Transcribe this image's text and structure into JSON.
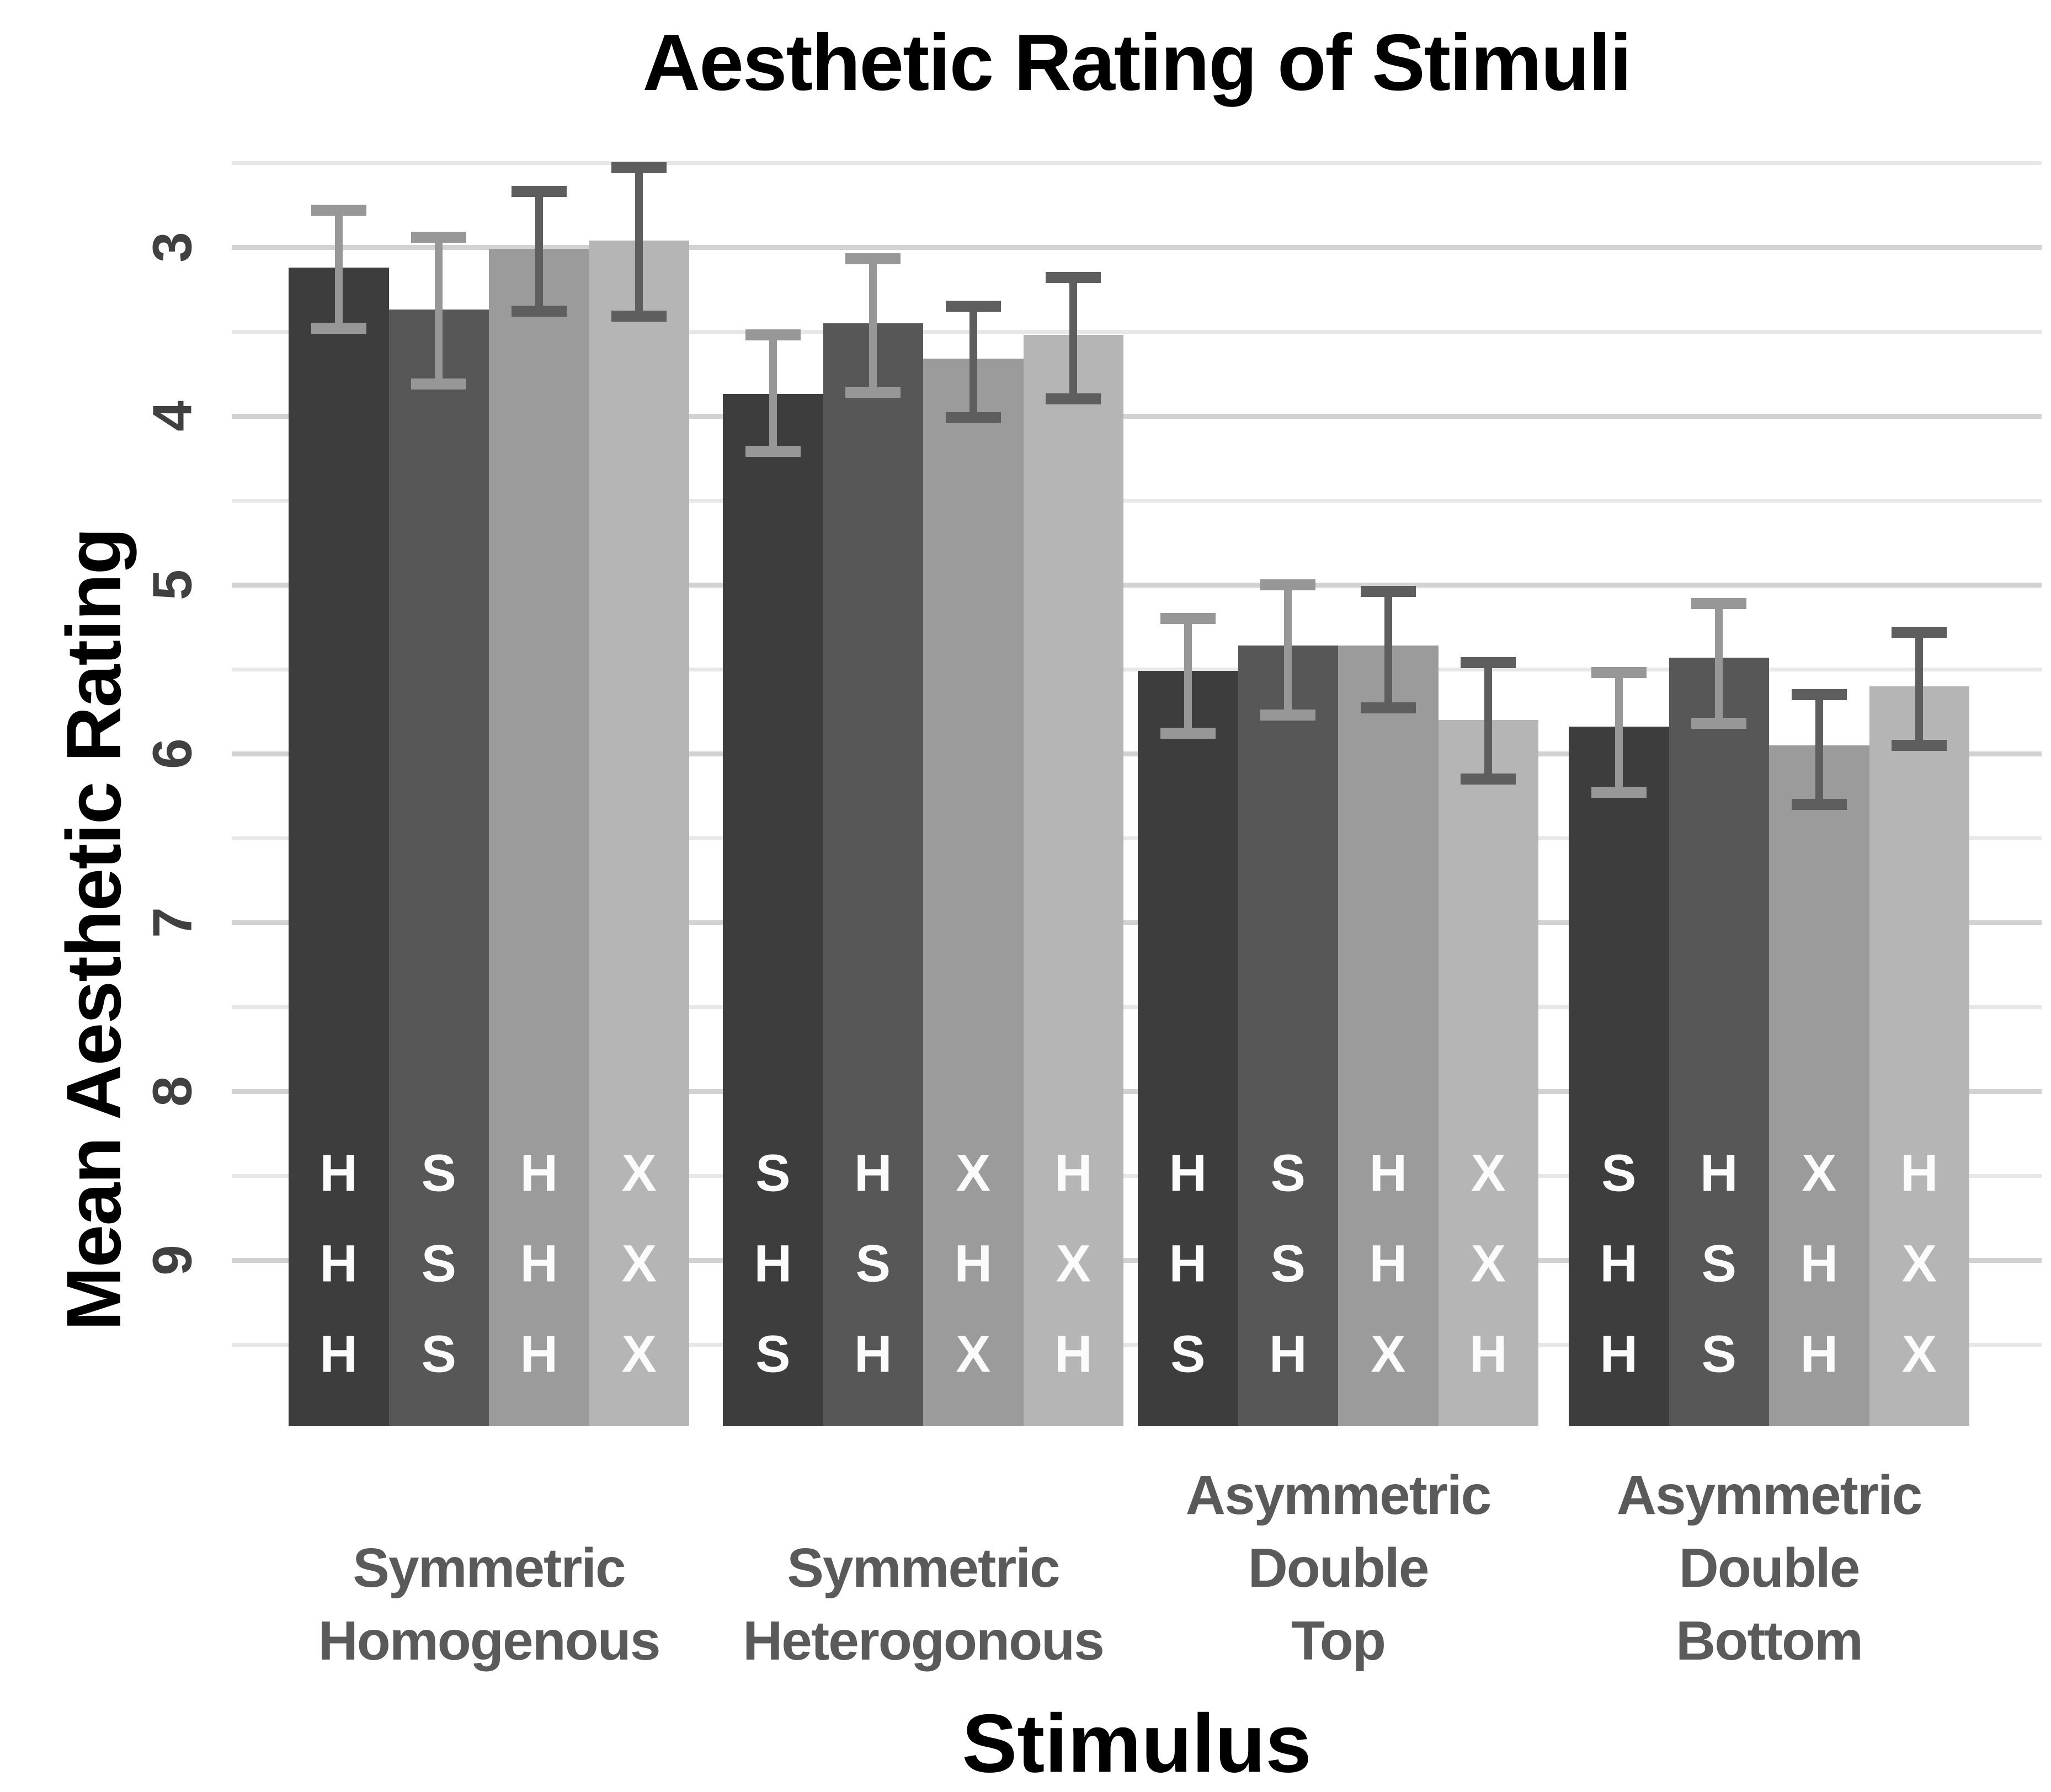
{
  "title": "Aesthetic Rating of Stimuli",
  "chart_data": {
    "type": "bar",
    "title": "Aesthetic Rating of Stimuli",
    "xlabel": "Stimulus",
    "ylabel": "Mean Aesthetic Rating",
    "y_axis_reversed": true,
    "ylim": [
      2.3,
      10
    ],
    "yticks": [
      3,
      4,
      5,
      6,
      7,
      8,
      9
    ],
    "grid": {
      "major_step": 1,
      "minor_step": 0.5,
      "major_color": "#d2d2d2",
      "minor_color": "#e7e7e7"
    },
    "legend_position": "none",
    "bars_baseline": 10,
    "bar_colors": [
      "#3d3d3d",
      "#575757",
      "#9b9b9b",
      "#b5b5b5"
    ],
    "errorbar_colors": [
      "#979797",
      "#979797",
      "#5e5e5e",
      "#5e5e5e"
    ],
    "letter_color": "#fbfbfb",
    "groups": [
      {
        "label_lines": [
          "Symmetric",
          "Homogenous"
        ],
        "bars": [
          {
            "letters": [
              "H",
              "H",
              "H"
            ],
            "mean": 3.12,
            "ci_low": 2.78,
            "ci_high": 3.48
          },
          {
            "letters": [
              "S",
              "S",
              "S"
            ],
            "mean": 3.37,
            "ci_low": 2.94,
            "ci_high": 3.81
          },
          {
            "letters": [
              "H",
              "H",
              "H"
            ],
            "mean": 3.01,
            "ci_low": 2.67,
            "ci_high": 3.38
          },
          {
            "letters": [
              "X",
              "X",
              "X"
            ],
            "mean": 2.96,
            "ci_low": 2.53,
            "ci_high": 3.41
          }
        ]
      },
      {
        "label_lines": [
          "Symmetric",
          "Heterogonous"
        ],
        "bars": [
          {
            "letters": [
              "S",
              "H",
              "S"
            ],
            "mean": 3.87,
            "ci_low": 3.52,
            "ci_high": 4.21
          },
          {
            "letters": [
              "H",
              "S",
              "H"
            ],
            "mean": 3.45,
            "ci_low": 3.07,
            "ci_high": 3.86
          },
          {
            "letters": [
              "X",
              "H",
              "X"
            ],
            "mean": 3.66,
            "ci_low": 3.35,
            "ci_high": 4.01
          },
          {
            "letters": [
              "H",
              "X",
              "H"
            ],
            "mean": 3.52,
            "ci_low": 3.18,
            "ci_high": 3.9
          }
        ]
      },
      {
        "label_lines": [
          "Asymmetric",
          "Double",
          "Top"
        ],
        "bars": [
          {
            "letters": [
              "H",
              "H",
              "S"
            ],
            "mean": 5.51,
            "ci_low": 5.2,
            "ci_high": 5.88
          },
          {
            "letters": [
              "S",
              "S",
              "H"
            ],
            "mean": 5.36,
            "ci_low": 5.0,
            "ci_high": 5.77
          },
          {
            "letters": [
              "H",
              "H",
              "X"
            ],
            "mean": 5.36,
            "ci_low": 5.04,
            "ci_high": 5.73
          },
          {
            "letters": [
              "X",
              "X",
              "H"
            ],
            "mean": 5.8,
            "ci_low": 5.46,
            "ci_high": 6.15
          }
        ]
      },
      {
        "label_lines": [
          "Asymmetric",
          "Double",
          "Bottom"
        ],
        "bars": [
          {
            "letters": [
              "S",
              "H",
              "H"
            ],
            "mean": 5.84,
            "ci_low": 5.52,
            "ci_high": 6.23
          },
          {
            "letters": [
              "H",
              "S",
              "S"
            ],
            "mean": 5.43,
            "ci_low": 5.11,
            "ci_high": 5.82
          },
          {
            "letters": [
              "X",
              "H",
              "H"
            ],
            "mean": 5.95,
            "ci_low": 5.65,
            "ci_high": 6.3
          },
          {
            "letters": [
              "H",
              "X",
              "X"
            ],
            "mean": 5.6,
            "ci_low": 5.28,
            "ci_high": 5.95
          }
        ]
      }
    ]
  }
}
